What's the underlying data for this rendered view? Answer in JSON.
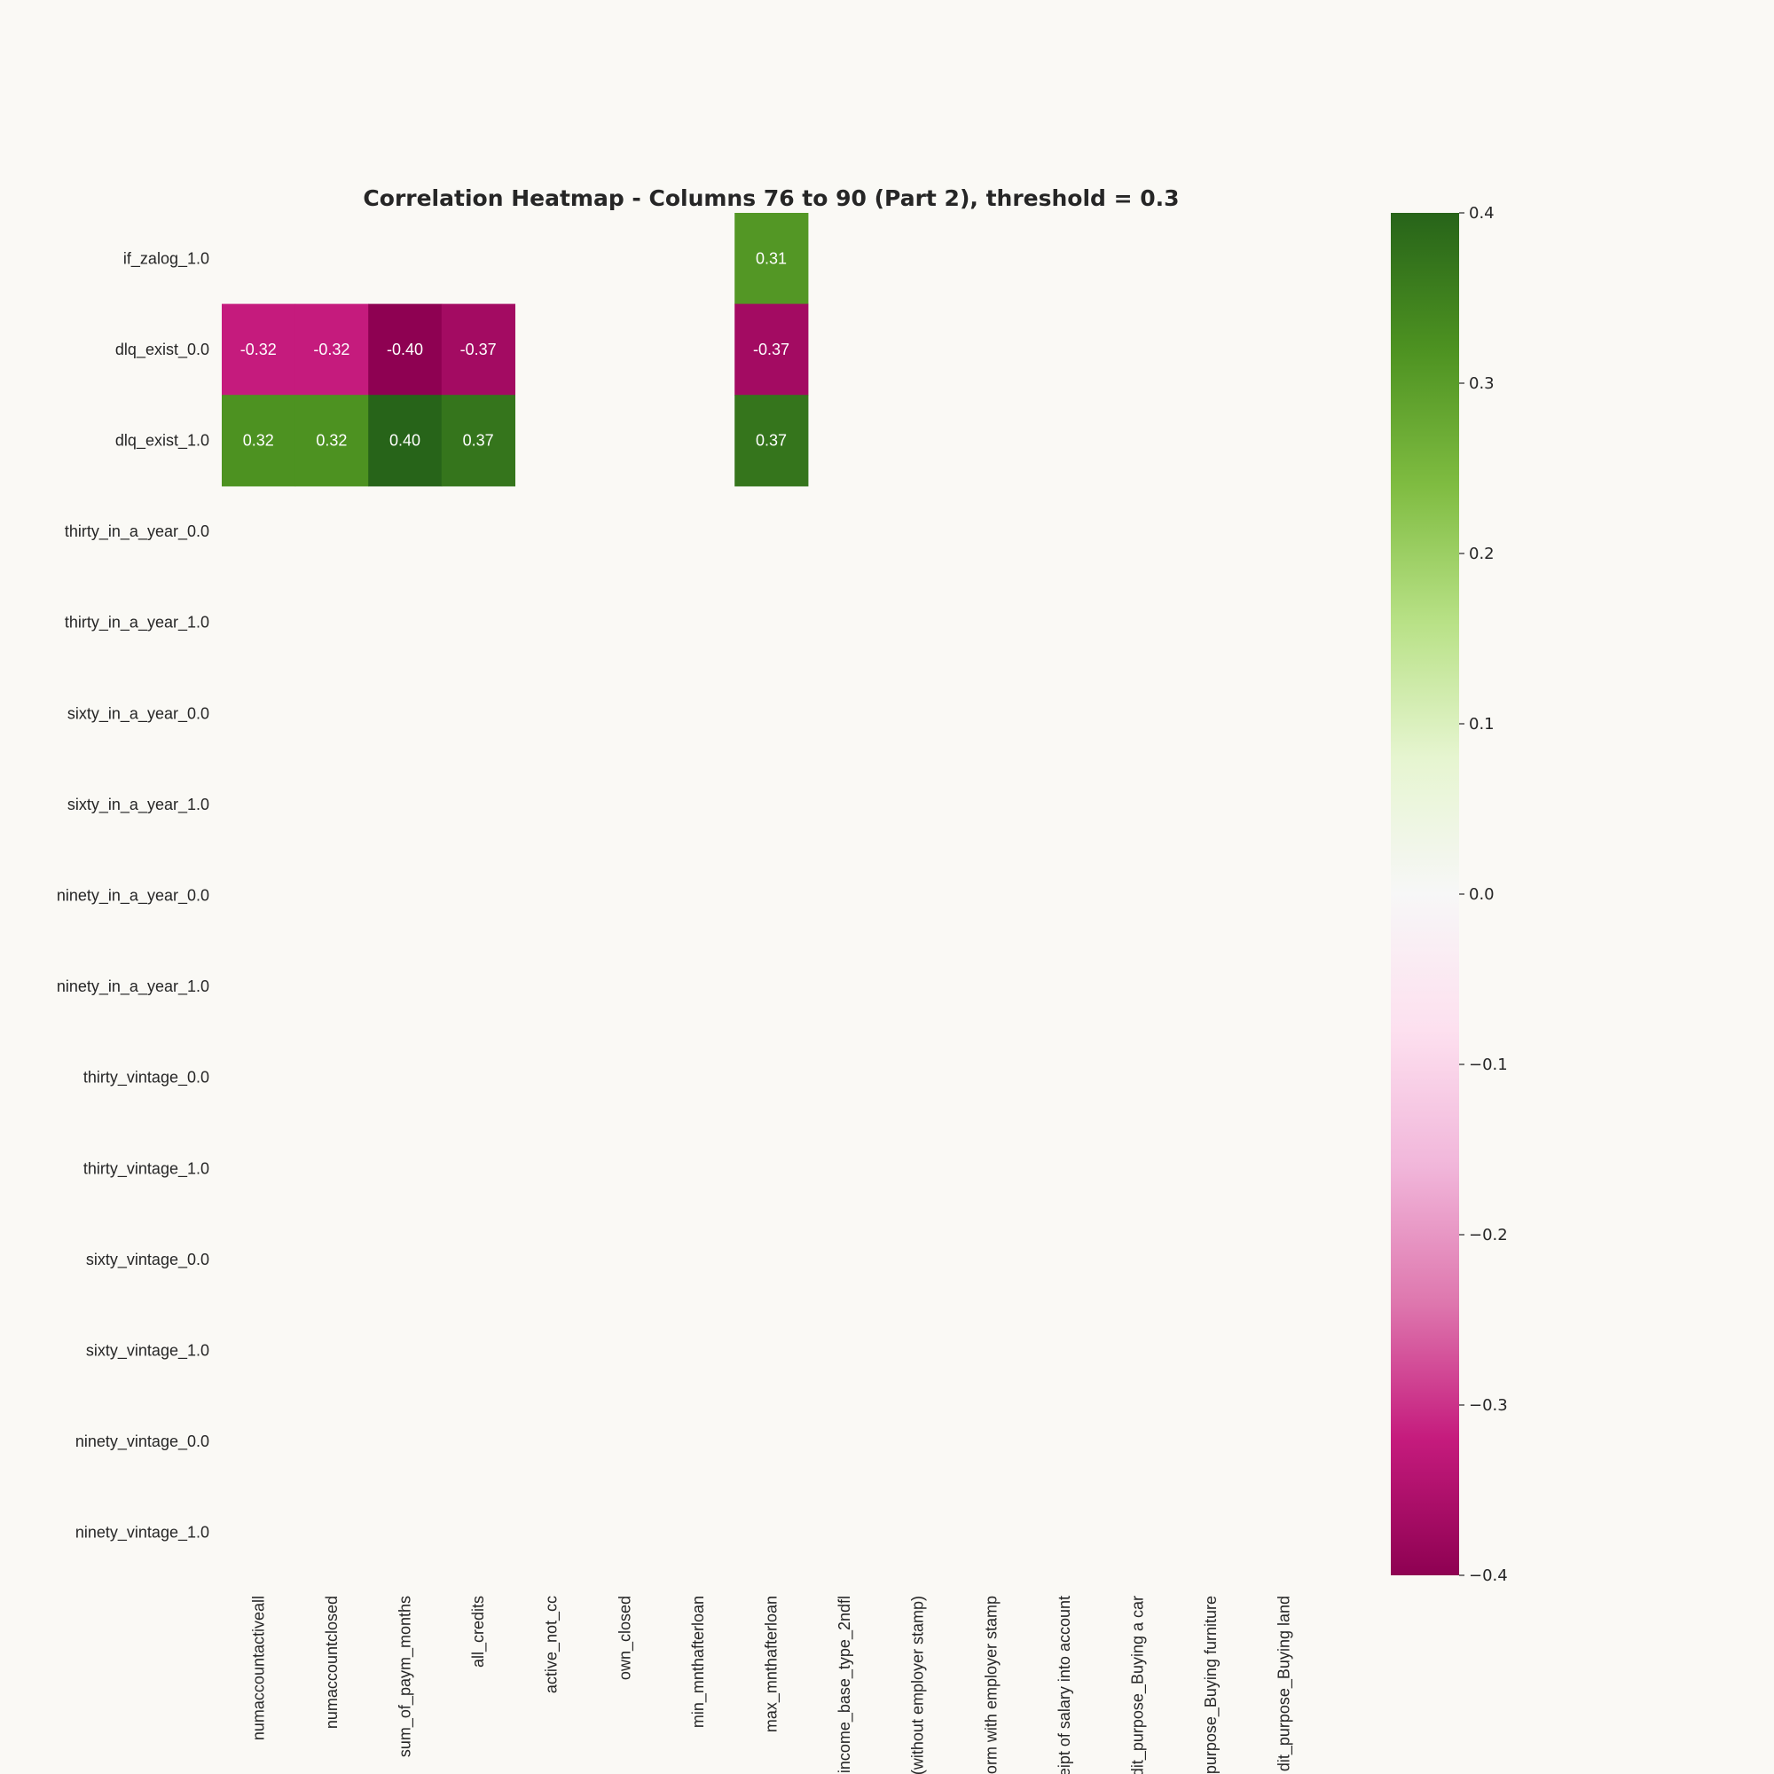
{
  "chart_data": {
    "type": "heatmap",
    "title": "Correlation Heatmap - Columns 76 to 90 (Part 2), threshold = 0.3",
    "rows": [
      "if_zalog_1.0",
      "dlq_exist_0.0",
      "dlq_exist_1.0",
      "thirty_in_a_year_0.0",
      "thirty_in_a_year_1.0",
      "sixty_in_a_year_0.0",
      "sixty_in_a_year_1.0",
      "ninety_in_a_year_0.0",
      "ninety_in_a_year_1.0",
      "thirty_vintage_0.0",
      "thirty_vintage_1.0",
      "sixty_vintage_0.0",
      "sixty_vintage_1.0",
      "ninety_vintage_0.0",
      "ninety_vintage_1.0"
    ],
    "columns": [
      "numaccountactiveall",
      "numaccountclosed",
      "sum_of_paym_months",
      "all_credits",
      "active_not_cc",
      "own_closed",
      "min_mnthafterloan",
      "max_mnthafterloan",
      "income_base_type_2ndfl",
      "(without employer stamp)",
      "orm with employer stamp",
      "eipt of salary into account",
      "dit_purpose_Buying a car",
      "purpose_Buying furniture",
      "dit_purpose_Buying land"
    ],
    "values": [
      [
        null,
        null,
        null,
        null,
        null,
        null,
        null,
        0.31,
        null,
        null,
        null,
        null,
        null,
        null,
        null
      ],
      [
        -0.32,
        -0.32,
        -0.4,
        -0.37,
        null,
        null,
        null,
        -0.37,
        null,
        null,
        null,
        null,
        null,
        null,
        null
      ],
      [
        0.32,
        0.32,
        0.4,
        0.37,
        null,
        null,
        null,
        0.37,
        null,
        null,
        null,
        null,
        null,
        null,
        null
      ],
      [
        null,
        null,
        null,
        null,
        null,
        null,
        null,
        null,
        null,
        null,
        null,
        null,
        null,
        null,
        null
      ],
      [
        null,
        null,
        null,
        null,
        null,
        null,
        null,
        null,
        null,
        null,
        null,
        null,
        null,
        null,
        null
      ],
      [
        null,
        null,
        null,
        null,
        null,
        null,
        null,
        null,
        null,
        null,
        null,
        null,
        null,
        null,
        null
      ],
      [
        null,
        null,
        null,
        null,
        null,
        null,
        null,
        null,
        null,
        null,
        null,
        null,
        null,
        null,
        null
      ],
      [
        null,
        null,
        null,
        null,
        null,
        null,
        null,
        null,
        null,
        null,
        null,
        null,
        null,
        null,
        null
      ],
      [
        null,
        null,
        null,
        null,
        null,
        null,
        null,
        null,
        null,
        null,
        null,
        null,
        null,
        null,
        null
      ],
      [
        null,
        null,
        null,
        null,
        null,
        null,
        null,
        null,
        null,
        null,
        null,
        null,
        null,
        null,
        null
      ],
      [
        null,
        null,
        null,
        null,
        null,
        null,
        null,
        null,
        null,
        null,
        null,
        null,
        null,
        null,
        null
      ],
      [
        null,
        null,
        null,
        null,
        null,
        null,
        null,
        null,
        null,
        null,
        null,
        null,
        null,
        null,
        null
      ],
      [
        null,
        null,
        null,
        null,
        null,
        null,
        null,
        null,
        null,
        null,
        null,
        null,
        null,
        null,
        null
      ],
      [
        null,
        null,
        null,
        null,
        null,
        null,
        null,
        null,
        null,
        null,
        null,
        null,
        null,
        null,
        null
      ],
      [
        null,
        null,
        null,
        null,
        null,
        null,
        null,
        null,
        null,
        null,
        null,
        null,
        null,
        null,
        null
      ]
    ],
    "colormap": "PiYG",
    "vmin": -0.4,
    "vmax": 0.4,
    "colorbar_ticks": [
      0.4,
      0.3,
      0.2,
      0.1,
      0.0,
      -0.1,
      -0.2,
      -0.3,
      -0.4
    ],
    "colorbar_tick_labels": [
      "0.4",
      "0.3",
      "0.2",
      "0.1",
      "0.0",
      "−0.1",
      "−0.2",
      "−0.3",
      "−0.4"
    ],
    "annotations": "values shown in cells with |r| >= threshold, 2 decimals",
    "background_color": "#faf9f5",
    "grid": false
  }
}
